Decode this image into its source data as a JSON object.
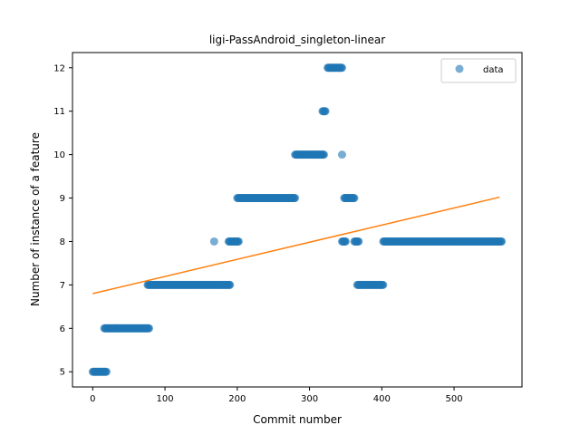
{
  "chart_data": {
    "type": "scatter",
    "title": "ligi-PassAndroid_singleton-linear",
    "xlabel": "Commit number",
    "ylabel": "Number of instance of a feature",
    "xlim": [
      -28,
      594
    ],
    "ylim": [
      4.65,
      12.35
    ],
    "xticks": [
      0,
      100,
      200,
      300,
      400,
      500
    ],
    "yticks": [
      5,
      6,
      7,
      8,
      9,
      10,
      11,
      12
    ],
    "grid": false,
    "legend": {
      "placement": "top-right",
      "entries": [
        "data"
      ]
    },
    "colors": {
      "data": "#1f77b4",
      "fit": "#ff7f0e"
    },
    "series": [
      {
        "name": "data",
        "kind": "scatter",
        "segments": [
          {
            "x_start": 0,
            "x_end": 19,
            "y": 5
          },
          {
            "x_start": 16,
            "x_end": 78,
            "y": 6
          },
          {
            "x_start": 76,
            "x_end": 190,
            "y": 7
          },
          {
            "x_start": 168,
            "x_end": 168,
            "y": 8
          },
          {
            "x_start": 188,
            "x_end": 202,
            "y": 8
          },
          {
            "x_start": 200,
            "x_end": 280,
            "y": 9
          },
          {
            "x_start": 280,
            "x_end": 320,
            "y": 10
          },
          {
            "x_start": 318,
            "x_end": 322,
            "y": 11
          },
          {
            "x_start": 325,
            "x_end": 345,
            "y": 12
          },
          {
            "x_start": 345,
            "x_end": 345,
            "y": 10
          },
          {
            "x_start": 345,
            "x_end": 350,
            "y": 8
          },
          {
            "x_start": 348,
            "x_end": 362,
            "y": 9
          },
          {
            "x_start": 362,
            "x_end": 368,
            "y": 8
          },
          {
            "x_start": 366,
            "x_end": 402,
            "y": 7
          },
          {
            "x_start": 402,
            "x_end": 566,
            "y": 8
          }
        ]
      },
      {
        "kind": "line",
        "points": [
          [
            0,
            6.8
          ],
          [
            563,
            9.02
          ]
        ]
      }
    ]
  }
}
